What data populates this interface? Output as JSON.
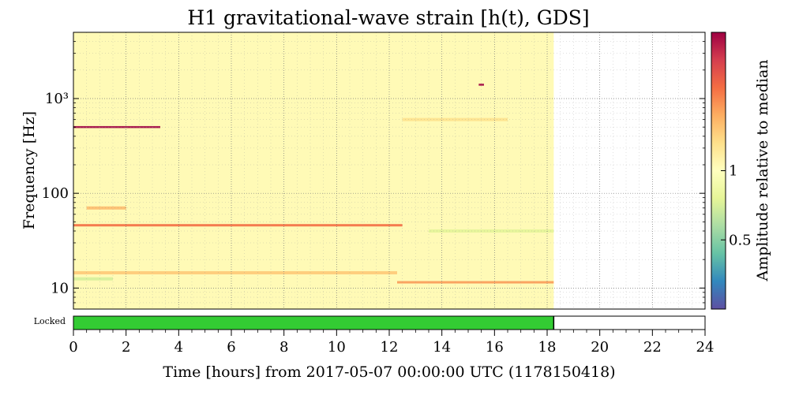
{
  "chart_data": {
    "type": "heatmap",
    "title": "H1 gravitational-wave strain [h(t), GDS]",
    "xlabel": "Time [hours] from 2017-05-07 00:00:00 UTC (1178150418)",
    "ylabel": "Frequency [Hz]",
    "x_range": [
      0,
      24
    ],
    "x_ticks": [
      "0",
      "2",
      "4",
      "6",
      "8",
      "10",
      "12",
      "14",
      "16",
      "18",
      "20",
      "22",
      "24"
    ],
    "y_scale": "log",
    "y_range": [
      6,
      5000
    ],
    "y_ticks": [
      {
        "value": 10,
        "label": "10"
      },
      {
        "value": 100,
        "label": "100"
      },
      {
        "value": 1000,
        "label": "10³"
      }
    ],
    "data_end_hours": 18.25,
    "grid": true,
    "colorbar": {
      "label": "Amplitude relative to median",
      "scale": "log",
      "range": [
        0.25,
        4
      ],
      "ticks": [
        {
          "value": 0.5,
          "label": "0.5"
        },
        {
          "value": 1,
          "label": "1"
        }
      ],
      "colors": [
        "#5e4fa2",
        "#3288bd",
        "#66c2a5",
        "#abdda4",
        "#e6f598",
        "#ffffbf",
        "#fee08b",
        "#fdae61",
        "#f46d43",
        "#d53e4f",
        "#9e0142"
      ]
    },
    "background_level": 1.05,
    "features": [
      {
        "name": "line ~500 Hz",
        "t_start": 0,
        "t_end": 3.3,
        "f": 500,
        "level": 4
      },
      {
        "name": "glitch ~1400 Hz",
        "t_start": 15.4,
        "t_end": 15.6,
        "f": 1400,
        "level": 4
      },
      {
        "name": "line ~46 Hz",
        "t_start": 0,
        "t_end": 12.5,
        "f": 46,
        "level": 2.3
      },
      {
        "name": "line ~70 Hz",
        "t_start": 0.5,
        "t_end": 2.0,
        "f": 70,
        "level": 1.6
      },
      {
        "name": "band 10-13 Hz",
        "t_start": 12.3,
        "t_end": 18.25,
        "f": 11.5,
        "level": 1.9
      },
      {
        "name": "low band ~14 Hz",
        "t_start": 0,
        "t_end": 12.3,
        "f": 14.5,
        "level": 1.5
      },
      {
        "name": "green patch ~12 Hz",
        "t_start": 0,
        "t_end": 1.5,
        "f": 12.5,
        "level": 0.7
      },
      {
        "name": "green line ~40 Hz",
        "t_start": 13.5,
        "t_end": 18.25,
        "f": 40,
        "level": 0.75
      },
      {
        "name": "band 400-800 Hz",
        "t_start": 12.5,
        "t_end": 16.5,
        "f": 600,
        "level": 1.3
      }
    ],
    "state_segment": {
      "label": "Locked",
      "color": "#33cc33",
      "segments": [
        [
          0,
          18.25
        ]
      ]
    }
  }
}
